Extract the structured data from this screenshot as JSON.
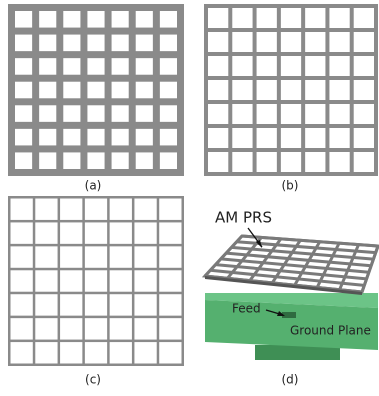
{
  "panels": [
    {
      "label": "(a)"
    },
    {
      "label": "(b)"
    },
    {
      "label": "(c)"
    },
    {
      "label": "(d)"
    }
  ],
  "annotations": {
    "am_prs": "AM PRS",
    "feed": "Feed",
    "ground_plane": "Ground Plane"
  }
}
